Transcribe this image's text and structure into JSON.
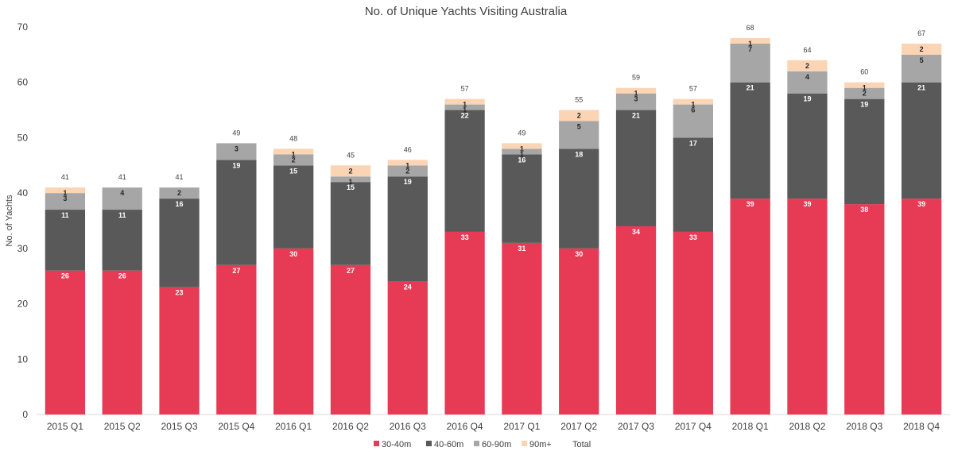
{
  "chart_data": {
    "type": "bar",
    "stacked": true,
    "title": "No. of Unique Yachts Visiting Australia",
    "xlabel": "",
    "ylabel": "No. of Yachts",
    "ylim": [
      0,
      70
    ],
    "yticks": [
      0,
      10,
      20,
      30,
      40,
      50,
      60,
      70
    ],
    "grid": false,
    "legend_position": "bottom",
    "categories": [
      "2015 Q1",
      "2015 Q2",
      "2015 Q3",
      "2015 Q4",
      "2016 Q1",
      "2016 Q2",
      "2016 Q3",
      "2016 Q4",
      "2017 Q1",
      "2017 Q2",
      "2017 Q3",
      "2017 Q4",
      "2018 Q1",
      "2018 Q2",
      "2018 Q3",
      "2018 Q4"
    ],
    "series": [
      {
        "name": "30-40m",
        "color": "#e63a55",
        "label_color": "#ffffff",
        "values": [
          26,
          26,
          23,
          27,
          30,
          27,
          24,
          33,
          31,
          30,
          34,
          33,
          39,
          39,
          38,
          39
        ]
      },
      {
        "name": "40-60m",
        "color": "#595959",
        "label_color": "#ffffff",
        "values": [
          11,
          11,
          16,
          19,
          15,
          15,
          19,
          22,
          16,
          18,
          21,
          17,
          21,
          19,
          19,
          21
        ]
      },
      {
        "name": "60-90m",
        "color": "#a6a6a6",
        "label_color": "#262626",
        "values": [
          3,
          4,
          2,
          3,
          2,
          1,
          2,
          1,
          1,
          5,
          3,
          6,
          7,
          4,
          2,
          5
        ]
      },
      {
        "name": "90m+",
        "color": "#fbd4b4",
        "label_color": "#262626",
        "values": [
          1,
          0,
          0,
          0,
          1,
          2,
          1,
          1,
          1,
          2,
          1,
          1,
          1,
          2,
          1,
          2
        ]
      }
    ],
    "totals_name": "Total",
    "totals": [
      41,
      41,
      41,
      49,
      48,
      45,
      46,
      57,
      49,
      55,
      59,
      57,
      68,
      64,
      60,
      67
    ]
  }
}
